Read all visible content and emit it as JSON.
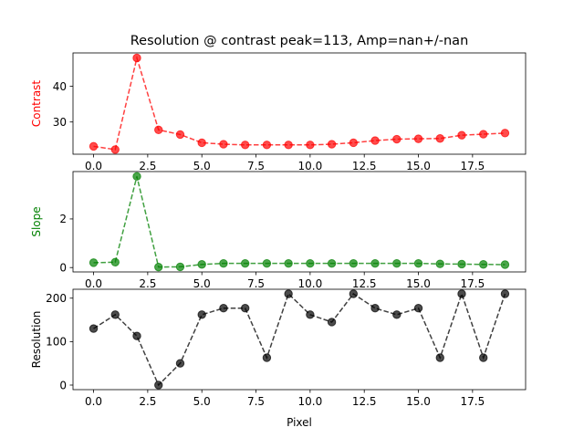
{
  "chart_data": {
    "title": "Resolution @ contrast peak=113, Amp=nan+/-nan",
    "type": "line",
    "xlabel": "Pixel",
    "x": [
      0,
      1,
      2,
      3,
      4,
      5,
      6,
      7,
      8,
      9,
      10,
      11,
      12,
      13,
      14,
      15,
      16,
      17,
      18,
      19
    ],
    "xlim": [
      -0.95,
      19.95
    ],
    "xticks": [
      "0.0",
      "2.5",
      "5.0",
      "7.5",
      "10.0",
      "12.5",
      "15.0",
      "17.5"
    ],
    "grid": false,
    "panels": [
      {
        "ylabel": "Contrast",
        "color": "#ff0000",
        "ylim": [
          21.0,
          49.3
        ],
        "yticks": [
          "30",
          "40"
        ],
        "values": [
          23.2,
          22.3,
          47.9,
          27.8,
          26.5,
          24.2,
          23.8,
          23.6,
          23.6,
          23.6,
          23.6,
          23.8,
          24.2,
          24.8,
          25.2,
          25.3,
          25.4,
          26.3,
          26.6,
          26.9
        ]
      },
      {
        "ylabel": "Slope",
        "color": "#008000",
        "ylim": [
          -0.18,
          3.95
        ],
        "yticks": [
          "0",
          "2"
        ],
        "values": [
          0.2,
          0.22,
          3.75,
          0.02,
          0.03,
          0.13,
          0.17,
          0.17,
          0.17,
          0.17,
          0.17,
          0.17,
          0.17,
          0.17,
          0.17,
          0.17,
          0.15,
          0.14,
          0.13,
          0.12
        ]
      },
      {
        "ylabel": "Resolution",
        "color": "#000000",
        "ylim": [
          -10.5,
          220.5
        ],
        "yticks": [
          "0",
          "100",
          "200"
        ],
        "values": [
          130,
          162,
          113,
          0,
          50,
          162,
          177,
          177,
          63,
          210,
          162,
          145,
          210,
          177,
          162,
          177,
          63,
          210,
          63,
          210
        ]
      }
    ]
  }
}
